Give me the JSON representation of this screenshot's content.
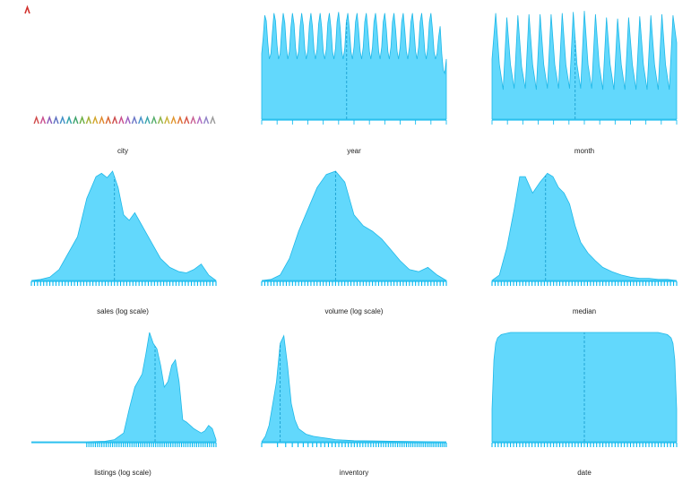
{
  "colors": {
    "fill": "#62d8fc",
    "stroke": "#1fb8e8",
    "rug": "#00b7f0",
    "median_line": "#1a9fd0",
    "city_marker_top": "#d2322d"
  },
  "chart_data": [
    {
      "type": "area",
      "panel": "city",
      "xlabel": "city",
      "series": [],
      "city_marker_colors": [
        "#d04a4a",
        "#c94e8e",
        "#8a5ab8",
        "#5a6fc0",
        "#3f8fc7",
        "#2fa1a8",
        "#3ea36a",
        "#6aae3f",
        "#a7ae35",
        "#d3a52b",
        "#e0892b",
        "#d8642f",
        "#cc4a4a",
        "#c9508f",
        "#9c5fc0",
        "#6a76c6",
        "#4592c8",
        "#38a5ab",
        "#55ad6a",
        "#8fb448",
        "#c8b036",
        "#e1962f",
        "#de702f",
        "#d65445",
        "#c85f93",
        "#b06ac3",
        "#8f82c6",
        "#9a9a9a"
      ]
    },
    {
      "type": "area",
      "panel": "year",
      "xlabel": "year",
      "x": [
        0,
        0.0083,
        0.0165,
        0.025,
        0.0332,
        0.0415,
        0.05,
        0.0583,
        0.0665,
        0.075,
        0.0832,
        0.0915,
        0.1,
        0.1083,
        0.1165,
        0.125,
        0.1333,
        0.1415,
        0.15,
        0.1583,
        0.1665,
        0.175,
        0.1833,
        0.1915,
        0.2,
        0.2083,
        0.2165,
        0.225,
        0.2333,
        0.2415,
        0.25,
        0.2583,
        0.2665,
        0.275,
        0.2833,
        0.2915,
        0.3,
        0.3083,
        0.3165,
        0.325,
        0.3333,
        0.3415,
        0.35,
        0.3583,
        0.3665,
        0.375,
        0.3833,
        0.3915,
        0.4,
        0.4083,
        0.4165,
        0.425,
        0.4333,
        0.4415,
        0.45,
        0.4583,
        0.4665,
        0.475,
        0.4833,
        0.4915,
        0.5,
        0.5083,
        0.5165,
        0.525,
        0.5333,
        0.5415,
        0.55,
        0.5583,
        0.5665,
        0.575,
        0.5833,
        0.5915,
        0.6,
        0.6083,
        0.6165,
        0.625,
        0.6333,
        0.6415,
        0.65,
        0.6583,
        0.6665,
        0.675,
        0.6833,
        0.6915,
        0.7,
        0.7083,
        0.7165,
        0.725,
        0.7333,
        0.7415,
        0.75,
        0.7583,
        0.7665,
        0.775,
        0.7833,
        0.7915,
        0.8,
        0.8083,
        0.8165,
        0.825,
        0.8333,
        0.8415,
        0.85,
        0.8583,
        0.8665,
        0.875,
        0.8833,
        0.8915,
        0.9,
        0.9083,
        0.9165,
        0.925,
        0.9333,
        0.9415,
        0.95,
        0.9583,
        0.9665,
        0.975,
        0.9833,
        0.9915,
        1
      ],
      "y": [
        0.6,
        0.75,
        0.95,
        0.9,
        0.7,
        0.55,
        0.6,
        0.8,
        0.97,
        0.9,
        0.68,
        0.55,
        0.6,
        0.82,
        0.97,
        0.88,
        0.66,
        0.55,
        0.62,
        0.84,
        0.97,
        0.87,
        0.65,
        0.55,
        0.62,
        0.85,
        0.97,
        0.86,
        0.64,
        0.55,
        0.63,
        0.86,
        0.97,
        0.85,
        0.63,
        0.55,
        0.64,
        0.87,
        0.97,
        0.84,
        0.62,
        0.55,
        0.64,
        0.88,
        0.97,
        0.83,
        0.62,
        0.55,
        0.65,
        0.89,
        0.98,
        0.83,
        0.62,
        0.55,
        0.65,
        0.89,
        0.97,
        0.82,
        0.62,
        0.55,
        0.66,
        0.89,
        0.97,
        0.82,
        0.62,
        0.55,
        0.66,
        0.89,
        0.97,
        0.82,
        0.62,
        0.55,
        0.66,
        0.89,
        0.97,
        0.82,
        0.62,
        0.55,
        0.66,
        0.89,
        0.97,
        0.82,
        0.62,
        0.55,
        0.66,
        0.89,
        0.97,
        0.82,
        0.62,
        0.55,
        0.66,
        0.89,
        0.97,
        0.82,
        0.62,
        0.55,
        0.66,
        0.89,
        0.97,
        0.82,
        0.62,
        0.55,
        0.66,
        0.89,
        0.97,
        0.82,
        0.62,
        0.55,
        0.66,
        0.89,
        0.97,
        0.82,
        0.62,
        0.55,
        0.6,
        0.75,
        0.85,
        0.6,
        0.45,
        0.42,
        0.55
      ],
      "median": 0.46
    },
    {
      "type": "area",
      "panel": "month",
      "xlabel": "month",
      "x": [
        0,
        0.02,
        0.04,
        0.06,
        0.08,
        0.1,
        0.12,
        0.14,
        0.16,
        0.18,
        0.2,
        0.22,
        0.24,
        0.26,
        0.28,
        0.3,
        0.32,
        0.34,
        0.36,
        0.38,
        0.4,
        0.42,
        0.44,
        0.46,
        0.48,
        0.5,
        0.52,
        0.54,
        0.56,
        0.58,
        0.6,
        0.62,
        0.64,
        0.66,
        0.68,
        0.7,
        0.72,
        0.74,
        0.76,
        0.78,
        0.8,
        0.82,
        0.84,
        0.86,
        0.88,
        0.9,
        0.92,
        0.94,
        0.96,
        0.98,
        1
      ],
      "y": [
        0.55,
        0.97,
        0.5,
        0.27,
        0.93,
        0.5,
        0.28,
        0.95,
        0.48,
        0.28,
        0.96,
        0.5,
        0.27,
        0.96,
        0.5,
        0.28,
        0.96,
        0.5,
        0.28,
        0.97,
        0.5,
        0.28,
        0.98,
        0.5,
        0.28,
        0.99,
        0.5,
        0.28,
        0.96,
        0.5,
        0.27,
        0.93,
        0.5,
        0.27,
        0.92,
        0.5,
        0.27,
        0.93,
        0.5,
        0.27,
        0.94,
        0.5,
        0.27,
        0.95,
        0.5,
        0.27,
        0.96,
        0.5,
        0.27,
        0.95,
        0.7
      ],
      "median": 0.45
    },
    {
      "type": "area",
      "panel": "sales",
      "xlabel": "sales (log scale)",
      "x": [
        0,
        0.05,
        0.1,
        0.15,
        0.2,
        0.25,
        0.3,
        0.35,
        0.38,
        0.41,
        0.44,
        0.47,
        0.5,
        0.53,
        0.56,
        0.6,
        0.65,
        0.7,
        0.75,
        0.8,
        0.84,
        0.88,
        0.92,
        0.96,
        1
      ],
      "y": [
        0,
        0.01,
        0.03,
        0.1,
        0.25,
        0.4,
        0.75,
        0.95,
        0.98,
        0.94,
        1.0,
        0.85,
        0.6,
        0.55,
        0.62,
        0.5,
        0.35,
        0.2,
        0.12,
        0.08,
        0.07,
        0.1,
        0.15,
        0.05,
        0
      ],
      "median": 0.45
    },
    {
      "type": "area",
      "panel": "volume",
      "xlabel": "volume (log scale)",
      "x": [
        0,
        0.05,
        0.1,
        0.15,
        0.2,
        0.25,
        0.3,
        0.35,
        0.4,
        0.45,
        0.5,
        0.55,
        0.6,
        0.65,
        0.7,
        0.75,
        0.8,
        0.85,
        0.9,
        0.95,
        1
      ],
      "y": [
        0,
        0.01,
        0.05,
        0.2,
        0.45,
        0.65,
        0.85,
        0.97,
        1.0,
        0.9,
        0.6,
        0.5,
        0.45,
        0.38,
        0.28,
        0.18,
        0.1,
        0.08,
        0.12,
        0.05,
        0
      ],
      "median": 0.4
    },
    {
      "type": "area",
      "panel": "median",
      "xlabel": "median",
      "x": [
        0,
        0.04,
        0.08,
        0.12,
        0.15,
        0.18,
        0.22,
        0.26,
        0.3,
        0.33,
        0.36,
        0.39,
        0.42,
        0.45,
        0.48,
        0.52,
        0.56,
        0.6,
        0.65,
        0.7,
        0.75,
        0.8,
        0.85,
        0.9,
        0.95,
        1
      ],
      "y": [
        0,
        0.05,
        0.3,
        0.65,
        0.95,
        0.95,
        0.8,
        0.9,
        0.98,
        0.95,
        0.85,
        0.8,
        0.7,
        0.5,
        0.35,
        0.25,
        0.18,
        0.12,
        0.08,
        0.05,
        0.03,
        0.02,
        0.02,
        0.01,
        0.01,
        0
      ],
      "median": 0.29
    },
    {
      "type": "area",
      "panel": "listings",
      "xlabel": "listings (log scale)",
      "x": [
        0,
        0.1,
        0.2,
        0.3,
        0.4,
        0.45,
        0.5,
        0.53,
        0.56,
        0.6,
        0.62,
        0.64,
        0.66,
        0.68,
        0.7,
        0.72,
        0.74,
        0.76,
        0.78,
        0.8,
        0.82,
        0.84,
        0.86,
        0.88,
        0.9,
        0.92,
        0.94,
        0.96,
        0.98,
        1
      ],
      "y": [
        0,
        0,
        0,
        0,
        0.005,
        0.02,
        0.08,
        0.3,
        0.5,
        0.62,
        0.8,
        1.0,
        0.9,
        0.85,
        0.7,
        0.5,
        0.55,
        0.7,
        0.75,
        0.55,
        0.2,
        0.18,
        0.15,
        0.12,
        0.1,
        0.08,
        0.1,
        0.15,
        0.12,
        0.02
      ],
      "median": 0.67
    },
    {
      "type": "area",
      "panel": "inventory",
      "xlabel": "inventory",
      "x": [
        0,
        0.02,
        0.04,
        0.06,
        0.08,
        0.1,
        0.12,
        0.14,
        0.16,
        0.18,
        0.2,
        0.24,
        0.28,
        0.32,
        0.36,
        0.4,
        0.45,
        0.5,
        0.6,
        0.7,
        0.8,
        0.9,
        1
      ],
      "y": [
        0,
        0.05,
        0.15,
        0.35,
        0.55,
        0.9,
        0.97,
        0.7,
        0.35,
        0.2,
        0.12,
        0.07,
        0.05,
        0.04,
        0.03,
        0.02,
        0.015,
        0.01,
        0.008,
        0.005,
        0.003,
        0.001,
        0
      ],
      "median": 0.1
    },
    {
      "type": "area",
      "panel": "date",
      "xlabel": "date",
      "x": [
        0,
        0.01,
        0.02,
        0.03,
        0.05,
        0.1,
        0.3,
        0.5,
        0.7,
        0.9,
        0.95,
        0.97,
        0.98,
        0.99,
        1
      ],
      "y": [
        0.3,
        0.75,
        0.9,
        0.95,
        0.98,
        1.0,
        1.0,
        1.0,
        1.0,
        1.0,
        0.98,
        0.95,
        0.9,
        0.75,
        0.3
      ],
      "median": 0.5
    }
  ]
}
